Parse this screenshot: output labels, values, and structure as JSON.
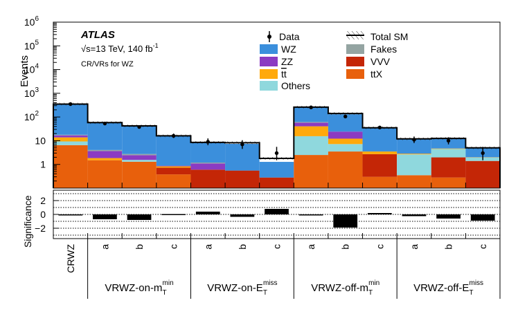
{
  "chart_data": {
    "type": "bar",
    "title": "ATLAS",
    "subtitle_line1": "√s=13 TeV, 140 fb",
    "subtitle_sup": "-1",
    "subtitle_line2": "CR/VRs for WZ",
    "ylabel": "Events",
    "sig_label": "Significance",
    "yscale": "log",
    "ylim": [
      0.1,
      1000000
    ],
    "y_ticks": [
      {
        "base": "10",
        "exp": "6",
        "value": 1000000
      },
      {
        "base": "10",
        "exp": "5",
        "value": 100000
      },
      {
        "base": "10",
        "exp": "4",
        "value": 10000
      },
      {
        "base": "10",
        "exp": "3",
        "value": 1000
      },
      {
        "base": "10",
        "exp": "2",
        "value": 100
      },
      {
        "base": "10",
        "exp": "",
        "value": 10
      },
      {
        "base": "1",
        "exp": "",
        "value": 1
      }
    ],
    "sig_ylim": [
      -3.5,
      3.5
    ],
    "sig_ticks": [
      {
        "label": "2",
        "value": 2
      },
      {
        "label": "0",
        "value": 0
      },
      {
        "label": "−2",
        "value": -2
      }
    ],
    "bins": [
      "CRWZ",
      "a",
      "b",
      "c",
      "a",
      "b",
      "c",
      "a",
      "b",
      "c",
      "a",
      "b",
      "c"
    ],
    "groups": [
      {
        "name": "VRWZ-on-m",
        "sub": "T",
        "sup": "min",
        "first_bin": 1
      },
      {
        "name": "VRWZ-on-E",
        "sub": "T",
        "sup": "miss",
        "first_bin": 4
      },
      {
        "name": "VRWZ-off-m",
        "sub": "T",
        "sup": "min",
        "first_bin": 7
      },
      {
        "name": "VRWZ-off-E",
        "sub": "T",
        "sup": "miss",
        "first_bin": 10
      }
    ],
    "series": [
      {
        "name": "ttX",
        "legend": "tt̄X",
        "color": "#e8600c",
        "values": [
          6.5,
          1.5,
          1.3,
          0.38,
          0.0,
          0.0,
          0.0,
          2.5,
          3.5,
          0.3,
          0.35,
          0.28,
          0.1
        ]
      },
      {
        "name": "VVV",
        "legend": "VVV",
        "color": "#c42606",
        "values": [
          0.0,
          0.0,
          0.0,
          0.35,
          0.6,
          0.55,
          0.28,
          0.0,
          0.0,
          2.4,
          0.0,
          1.7,
          1.3
        ]
      },
      {
        "name": "Others",
        "legend": "Others",
        "color": "#8fd8dd",
        "values": [
          2.8,
          0.0,
          0.25,
          0.0,
          0.0,
          0.0,
          0.0,
          13.0,
          3.7,
          0.0,
          2.3,
          2.5,
          0.55
        ]
      },
      {
        "name": "tt",
        "legend": "tt̄",
        "color": "#ffa90c",
        "values": [
          4.5,
          0.35,
          0.0,
          0.1,
          0.0,
          0.0,
          0.0,
          25.0,
          5.0,
          0.8,
          0.2,
          0.2,
          0.05
        ]
      },
      {
        "name": "ZZ",
        "legend": "ZZ",
        "color": "#8b3bc2",
        "values": [
          3.0,
          1.8,
          0.9,
          0.05,
          0.5,
          0.0,
          0.0,
          17.0,
          12.0,
          0.0,
          0.0,
          0.0,
          0.0
        ]
      },
      {
        "name": "Fakes",
        "legend": "Fakes",
        "color": "#94a4a2",
        "values": [
          1.0,
          0.4,
          0.3,
          0.0,
          0.1,
          0.0,
          0.0,
          4.0,
          0.0,
          0.0,
          0.0,
          0.0,
          0.0
        ]
      },
      {
        "name": "WZ",
        "legend": "WZ",
        "color": "#3b8fdc",
        "values": [
          320.0,
          53.0,
          38.0,
          15.0,
          7.3,
          6.8,
          1.0,
          200.0,
          106.0,
          30.0,
          9.0,
          8.0,
          3.1
        ]
      }
    ],
    "total_sm": [
      350,
      58,
      42,
      16,
      8.5,
      8.2,
      1.8,
      260,
      140,
      35,
      12,
      12.5,
      5.0
    ],
    "data": [
      350,
      53,
      38,
      16,
      9,
      7,
      3,
      255,
      105,
      36,
      11,
      10,
      3
    ],
    "data_err_lo": [
      0,
      5,
      4,
      3,
      2.5,
      2.5,
      1.5,
      0,
      10,
      5,
      3,
      3,
      1.5
    ],
    "data_err_hi": [
      0,
      5,
      5,
      4,
      3.5,
      3.5,
      2.5,
      0,
      10,
      6,
      4,
      4,
      2.5
    ],
    "significance": [
      0.0,
      -0.7,
      -0.8,
      0.05,
      0.4,
      -0.35,
      0.8,
      -0.1,
      -1.9,
      0.2,
      -0.25,
      -0.6,
      -0.9
    ],
    "legend": {
      "data": "Data",
      "total": "Total SM",
      "col1": [
        "WZ",
        "ZZ",
        "tt",
        "Others"
      ],
      "col2": [
        "Fakes",
        "VVV",
        "ttX"
      ]
    }
  }
}
